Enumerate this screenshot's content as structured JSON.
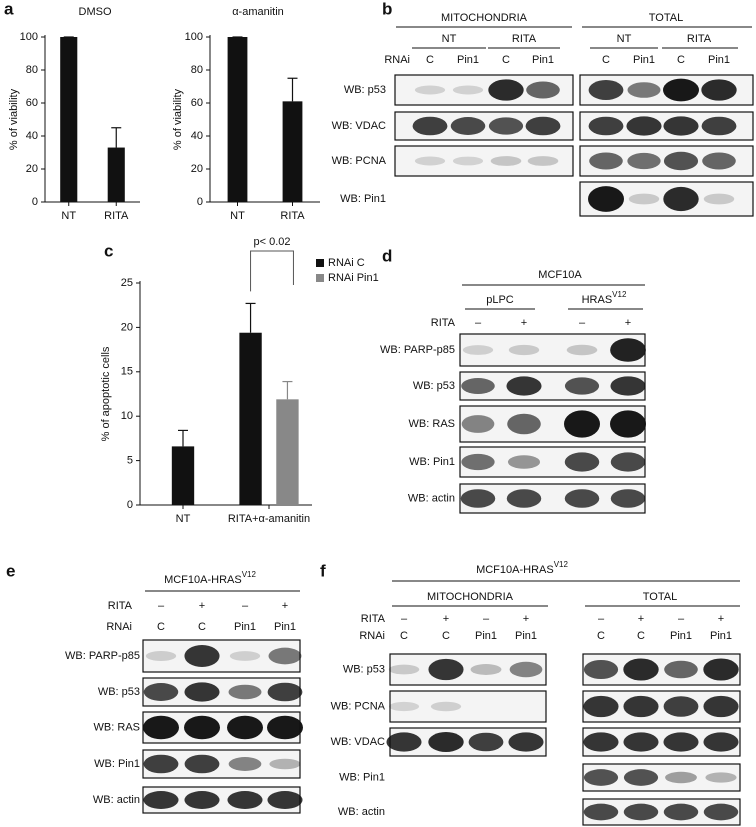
{
  "chart_data": [
    {
      "type": "bar",
      "title": "DMSO",
      "ylabel": "% of viability",
      "categories": [
        "NT",
        "RITA"
      ],
      "values": [
        100,
        33
      ],
      "errors": [
        0,
        12
      ],
      "color": "#111111",
      "ylim": [
        0,
        100
      ],
      "yticks": [
        0,
        20,
        40,
        60,
        80,
        100
      ]
    },
    {
      "type": "bar",
      "title": "α-amanitin",
      "ylabel": "% of viability",
      "categories": [
        "NT",
        "RITA"
      ],
      "values": [
        100,
        61
      ],
      "errors": [
        0,
        14
      ],
      "color": "#111111",
      "ylim": [
        0,
        100
      ],
      "yticks": [
        0,
        20,
        40,
        60,
        80,
        100
      ]
    },
    {
      "type": "grouped_bar",
      "ylabel": "% of apoptotic cells",
      "categories": [
        "NT",
        "RITA+α-amanitin"
      ],
      "annotation": "p< 0.02",
      "series": [
        {
          "name": "RNAi C",
          "color": "#111111",
          "values": [
            6.6,
            19.4
          ],
          "errors": [
            1.8,
            3.3
          ]
        },
        {
          "name": "RNAi Pin1",
          "color": "#888888",
          "values": [
            null,
            11.9
          ],
          "errors": [
            null,
            2.0
          ]
        }
      ],
      "ylim": [
        0,
        25
      ],
      "yticks": [
        0,
        5,
        10,
        15,
        20,
        25
      ]
    }
  ],
  "panel_labels": [
    "a",
    "b",
    "c",
    "d",
    "e",
    "f"
  ],
  "blot_b": {
    "groups": [
      "MITOCHONDRIA",
      "TOTAL"
    ],
    "subgroups": [
      "NT",
      "RITA",
      "NT",
      "RITA"
    ],
    "conditions": [
      {
        "label": "RNAi",
        "values": [
          "C",
          "Pin1",
          "C",
          "Pin1",
          "C",
          "Pin1",
          "C",
          "Pin1"
        ]
      }
    ],
    "rows": [
      "WB: p53",
      "WB: VDAC",
      "WB: PCNA",
      "WB: Pin1"
    ]
  },
  "blot_d": {
    "title": "MCF10A",
    "subgroups": [
      {
        "text": "pLPC"
      },
      {
        "text": "HRAS",
        "sup": "V12"
      }
    ],
    "conditions": [
      {
        "label": "RITA",
        "values": [
          "–",
          "+",
          "–",
          "+"
        ]
      }
    ],
    "rows": [
      "WB: PARP-p85",
      "WB: p53",
      "WB: RAS",
      "WB: Pin1",
      "WB: actin"
    ]
  },
  "blot_e": {
    "title": {
      "text": "MCF10A-HRAS",
      "sup": "V12"
    },
    "conditions": [
      {
        "label": "RITA",
        "values": [
          "–",
          "+",
          "–",
          "+"
        ]
      },
      {
        "label": "RNAi",
        "values": [
          "C",
          "C",
          "Pin1",
          "Pin1"
        ]
      }
    ],
    "rows": [
      "WB: PARP-p85",
      "WB: p53",
      "WB: RAS",
      "WB: Pin1",
      "WB: actin"
    ]
  },
  "blot_f": {
    "title": {
      "text": "MCF10A-HRAS",
      "sup": "V12"
    },
    "groups": [
      "MITOCHONDRIA",
      "TOTAL"
    ],
    "conditions": [
      {
        "label": "RITA",
        "values": [
          "–",
          "+",
          "–",
          "+",
          "–",
          "+",
          "–",
          "+"
        ]
      },
      {
        "label": "RNAi",
        "values": [
          "C",
          "C",
          "Pin1",
          "Pin1",
          "C",
          "C",
          "Pin1",
          "Pin1"
        ]
      }
    ],
    "rows": [
      "WB: p53",
      "WB: PCNA",
      "WB: VDAC",
      "WB: Pin1",
      "WB: actin"
    ]
  }
}
